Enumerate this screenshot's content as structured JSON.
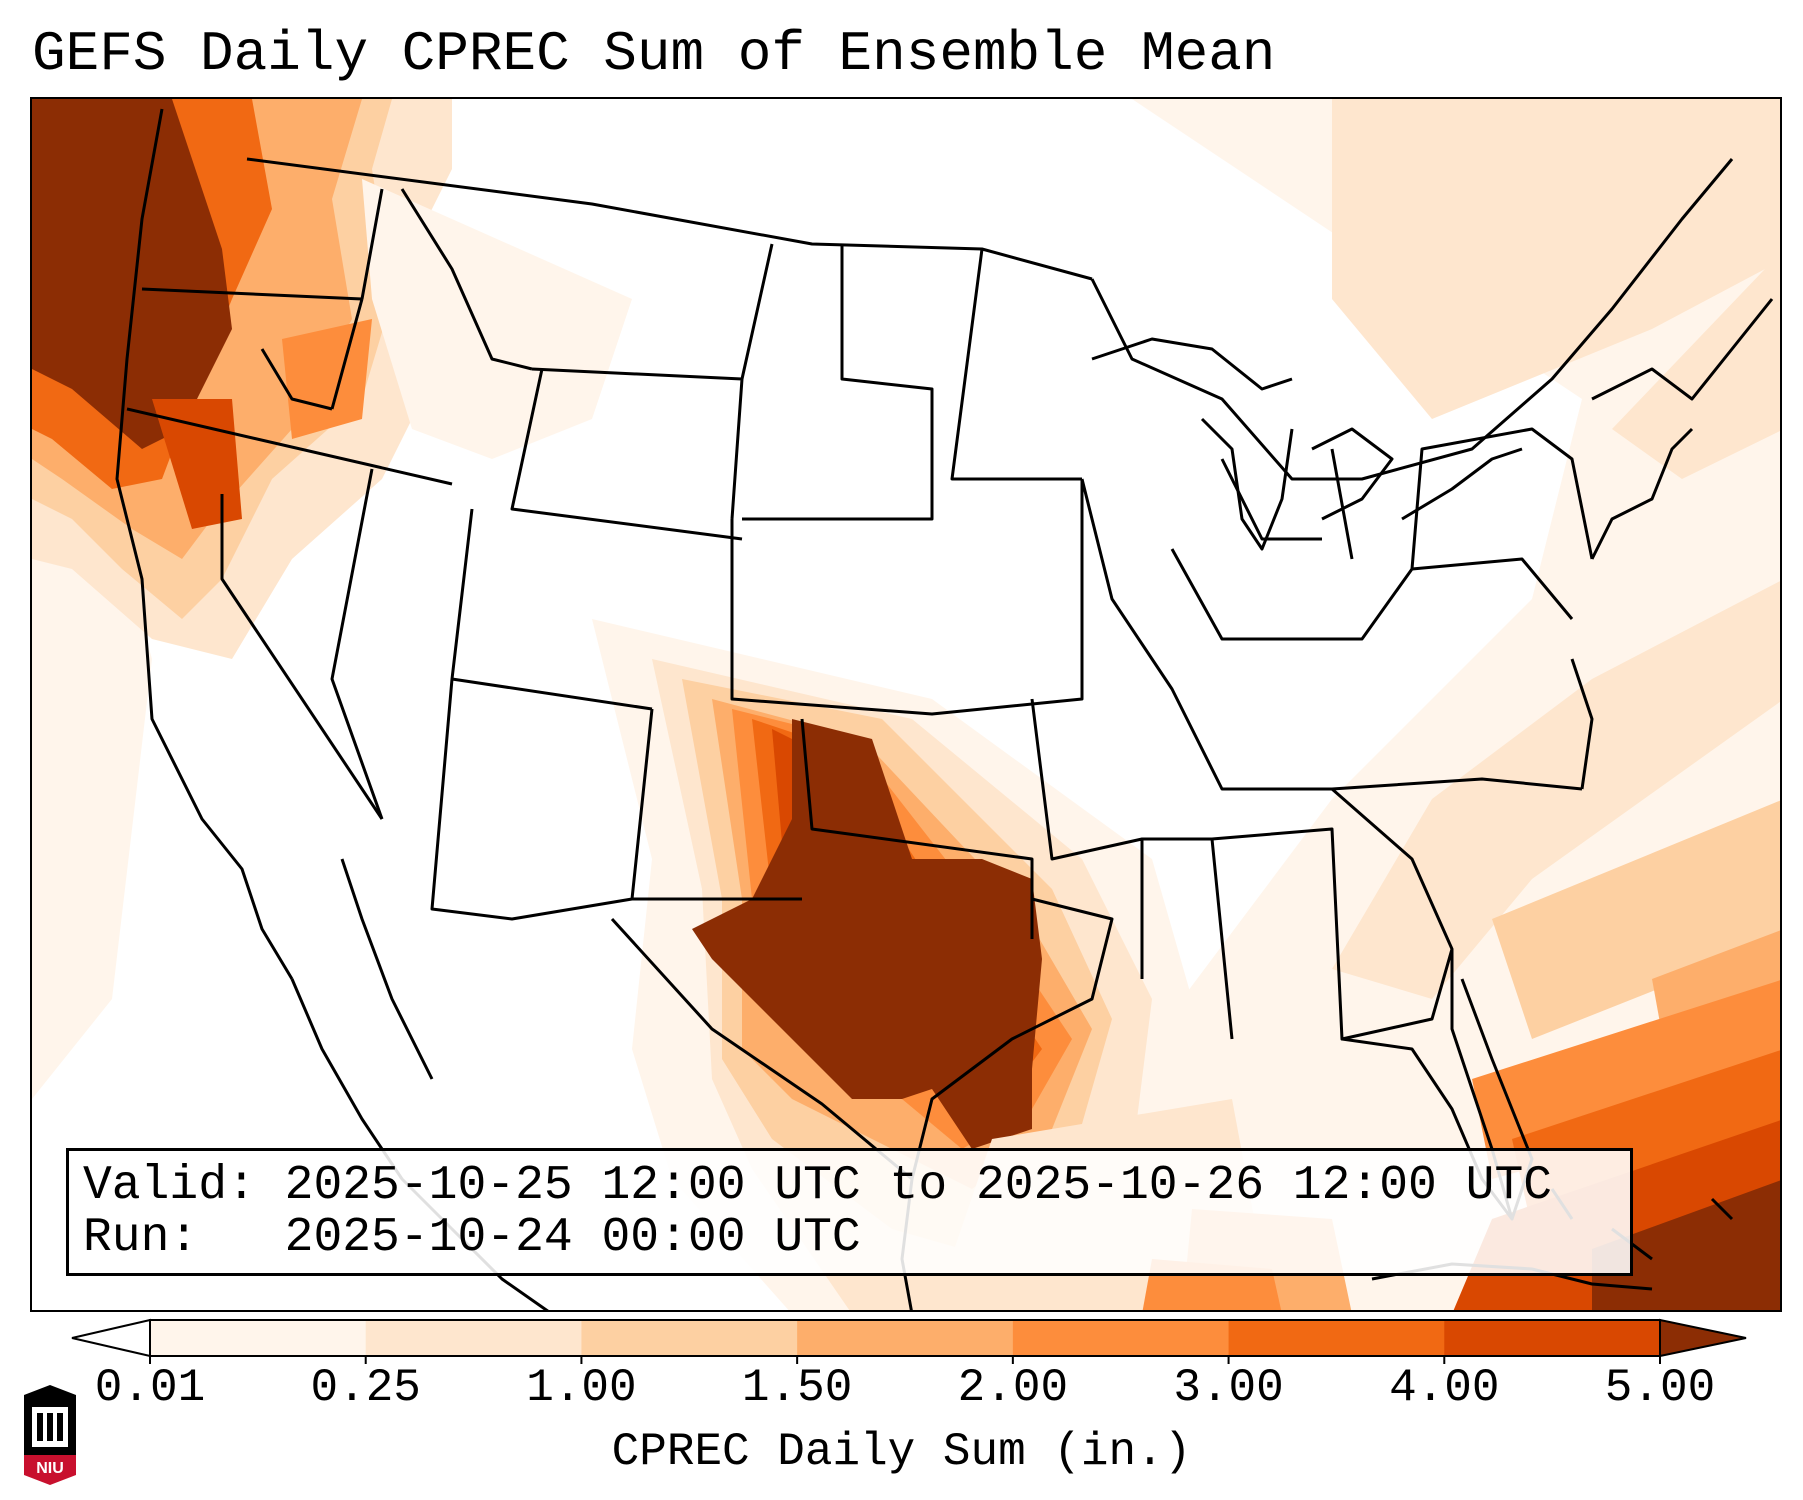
{
  "title": "GEFS Daily CPREC Sum of Ensemble Mean",
  "info": {
    "valid_label": "Valid:",
    "valid_value": "2025-10-25 12:00 UTC to 2025-10-26 12:00 UTC",
    "run_label": "Run:",
    "run_value": "2025-10-24 00:00 UTC"
  },
  "colorbar": {
    "label": "CPREC Daily Sum (in.)",
    "ticks": [
      "0.01",
      "0.25",
      "1.00",
      "1.50",
      "2.00",
      "3.00",
      "4.00",
      "5.00"
    ],
    "colors": [
      "#fff5eb",
      "#fee6ce",
      "#fdd0a2",
      "#fdae6b",
      "#fd8d3c",
      "#f16913",
      "#d94801",
      "#8c2d04"
    ],
    "under_color": "#ffffff",
    "over_color": "#7f2704",
    "extend": "both"
  },
  "map": {
    "projection": "lambert-conformal",
    "region": "CONUS",
    "boundary_color": "#000000",
    "coast_color": "#000000"
  },
  "logo": {
    "text": "NIU",
    "color": "#c8102e"
  }
}
